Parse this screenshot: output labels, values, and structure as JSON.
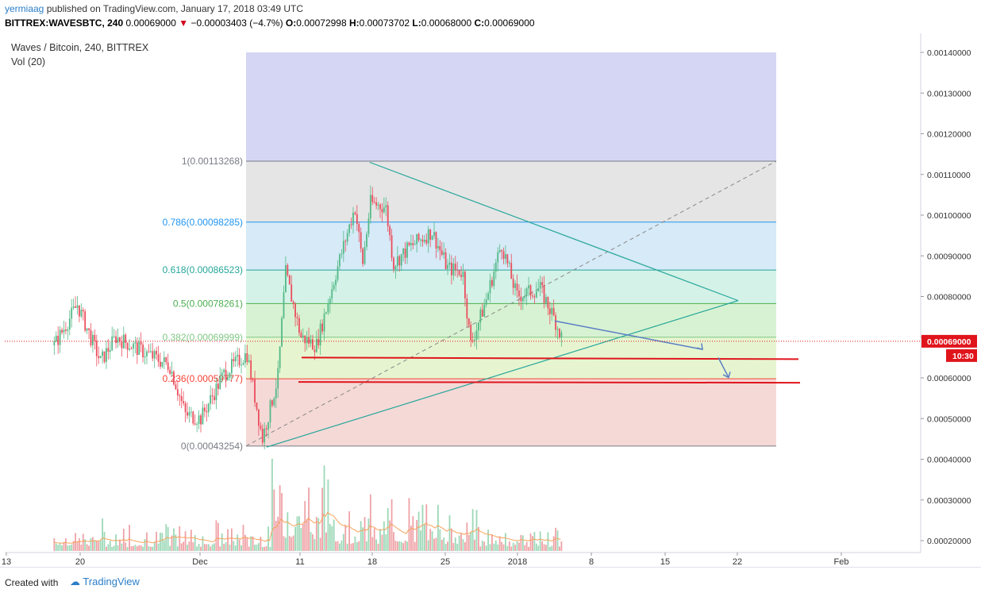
{
  "header": {
    "user": "yermiaag",
    "published": "published on TradingView.com, January 17, 2018 03:49 UTC",
    "symbol": "BITTREX:WAVESBTC, 240",
    "last": "0.00069000",
    "change": "−0.00003403 (−4.7%)",
    "open_label": "O:",
    "open": "0.00072998",
    "high_label": "H:",
    "high": "0.00073702",
    "low_label": "L:",
    "low": "0.00068000",
    "close_label": "C:",
    "close": "0.00069000"
  },
  "footer": {
    "created_with": "Created with",
    "brand": "TradingView"
  },
  "chart_data": {
    "type": "candlestick",
    "title": "Waves / Bitcoin, 240, BITTREX",
    "indicator": "Vol (20)",
    "y_axis": {
      "ticks": [
        "0.00140000",
        "0.00130000",
        "0.00120000",
        "0.00110000",
        "0.00100000",
        "0.00090000",
        "0.00080000",
        "0.00070000",
        "0.00060000",
        "0.00050000",
        "0.00040000",
        "0.00030000",
        "0.00020000"
      ],
      "current_price_label": "0.00069000",
      "countdown": "10:30"
    },
    "x_axis": {
      "ticks": [
        "13",
        "20",
        "Dec",
        "11",
        "18",
        "25",
        "2018",
        "8",
        "15",
        "22",
        "Feb"
      ]
    },
    "fibonacci": [
      {
        "label": "1(0.00113268)",
        "level": 1,
        "price": 0.00113268,
        "color": "#787b86"
      },
      {
        "label": "0.786(0.00098285)",
        "level": 0.786,
        "price": 0.00098285,
        "color": "#2196f3"
      },
      {
        "label": "0.618(0.00086523)",
        "level": 0.618,
        "price": 0.00086523,
        "color": "#26a69a"
      },
      {
        "label": "0.5(0.00078261)",
        "level": 0.5,
        "price": 0.00078261,
        "color": "#4caf50"
      },
      {
        "label": "0.382(0.00069999)",
        "level": 0.382,
        "price": 0.00069999,
        "color": "#81c784"
      },
      {
        "label": "0.236(0.00059777)",
        "level": 0.236,
        "price": 0.00059777,
        "color": "#f44336"
      },
      {
        "label": "0(0.00043254)",
        "level": 0,
        "price": 0.00043254,
        "color": "#787b86"
      }
    ],
    "price_path": [
      [
        "Nov 12",
        0.00068
      ],
      [
        "Nov 15",
        0.00078
      ],
      [
        "Nov 18",
        0.00064
      ],
      [
        "Nov 20",
        0.0007
      ],
      [
        "Nov 24",
        0.00066
      ],
      [
        "Nov 27",
        0.00063
      ],
      [
        "Nov 29",
        0.00051
      ],
      [
        "Dec 1",
        0.0005
      ],
      [
        "Dec 4",
        0.00061
      ],
      [
        "Dec 7",
        0.00066
      ],
      [
        "Dec 9",
        0.00045
      ],
      [
        "Dec 11",
        0.0006
      ],
      [
        "Dec 12",
        0.00086
      ],
      [
        "Dec 14",
        0.0007
      ],
      [
        "Dec 16",
        0.00068
      ],
      [
        "Dec 19",
        0.00089
      ],
      [
        "Dec 21",
        0.00102
      ],
      [
        "Dec 22",
        0.00088
      ],
      [
        "Dec 23",
        0.00103
      ],
      [
        "Dec 25",
        0.00102
      ],
      [
        "Dec 26",
        0.00088
      ],
      [
        "Dec 28",
        0.00092
      ],
      [
        "Dec 31",
        0.00096
      ],
      [
        "Jan 2",
        0.00087
      ],
      [
        "Jan 4",
        0.00086
      ],
      [
        "Jan 5",
        0.00068
      ],
      [
        "Jan 7",
        0.00079
      ],
      [
        "Jan 9",
        0.00093
      ],
      [
        "Jan 11",
        0.0008
      ],
      [
        "Jan 14",
        0.00082
      ],
      [
        "Jan 16",
        0.00074
      ],
      [
        "Jan 17",
        0.00069
      ]
    ],
    "drawn_levels": [
      0.00065,
      0.00059
    ],
    "volume_ma_color": "#f7a35c"
  }
}
